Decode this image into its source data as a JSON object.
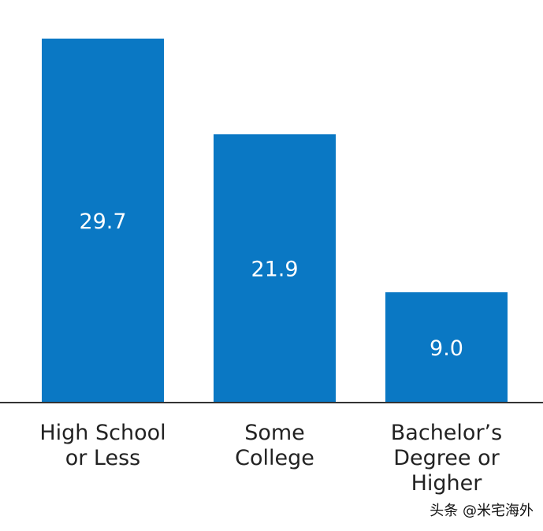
{
  "chart_data": {
    "type": "bar",
    "categories": [
      "High School\nor Less",
      "Some\nCollege",
      "Bachelor’s\nDegree or\nHigher"
    ],
    "values": [
      29.7,
      21.9,
      9.0
    ],
    "data_labels": [
      "29.7",
      "21.9",
      "9.0"
    ],
    "title": "",
    "xlabel": "",
    "ylabel": "",
    "ylim": [
      0,
      29.7
    ],
    "grid": false,
    "legend": "none",
    "colors": {
      "bar": "#0a78c4",
      "bar_label": "#ffffff",
      "axis": "#333333"
    }
  },
  "watermark": "头条 @米宅海外"
}
